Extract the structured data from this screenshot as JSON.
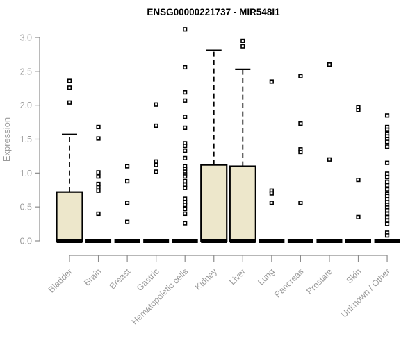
{
  "chart_data": {
    "type": "boxplot",
    "title": "ENSG00000221737 - MIR548I1",
    "ylabel": "Expression",
    "xlabel": "",
    "ylim": [
      0,
      3.2
    ],
    "yticks": [
      "0.0",
      "0.5",
      "1.0",
      "1.5",
      "2.0",
      "2.5",
      "3.0"
    ],
    "grid": false,
    "legend": "none",
    "colors": {
      "box_fill": "#EDE7CB",
      "box_border": "#000000",
      "whisker": "#000000",
      "outlier_stroke": "#000000",
      "outlier_fill": "#FFFFFF",
      "axis_line": "#8C8C8C",
      "tick_label": "#9A9A9A",
      "title": "#000000"
    },
    "categories": [
      {
        "label": "Bladder",
        "q1": 0,
        "median": 0,
        "q3": 0.72,
        "whisker_low": 0,
        "whisker_high": 1.57,
        "outliers": [
          2.36,
          2.26,
          2.04
        ]
      },
      {
        "label": "Brain",
        "q1": 0,
        "median": 0,
        "q3": 0,
        "whisker_low": 0,
        "whisker_high": 0,
        "outliers": [
          1.68,
          1.51,
          1.01,
          0.95,
          0.84,
          0.79,
          0.74,
          0.4
        ]
      },
      {
        "label": "Breast",
        "q1": 0,
        "median": 0,
        "q3": 0,
        "whisker_low": 0,
        "whisker_high": 0,
        "outliers": [
          1.1,
          0.88,
          0.56,
          0.28
        ]
      },
      {
        "label": "Gastric",
        "q1": 0,
        "median": 0,
        "q3": 0,
        "whisker_low": 0,
        "whisker_high": 0,
        "outliers": [
          2.01,
          1.7,
          1.17,
          1.12,
          1.02
        ]
      },
      {
        "label": "Hematopoietic cells",
        "q1": 0,
        "median": 0,
        "q3": 0,
        "whisker_low": 0,
        "whisker_high": 0,
        "outliers": [
          3.12,
          2.56,
          2.19,
          2.07,
          1.83,
          1.67,
          1.44,
          1.4,
          1.33,
          1.22,
          1.1,
          1.06,
          1.02,
          0.98,
          0.95,
          0.88,
          0.83,
          0.78,
          0.62,
          0.57,
          0.53,
          0.47,
          0.4,
          0.26
        ]
      },
      {
        "label": "Kidney",
        "q1": 0,
        "median": 0,
        "q3": 1.12,
        "whisker_low": 0,
        "whisker_high": 2.81,
        "outliers": []
      },
      {
        "label": "Liver",
        "q1": 0,
        "median": 0,
        "q3": 1.1,
        "whisker_low": 0,
        "whisker_high": 2.53,
        "outliers": [
          2.95,
          2.87
        ]
      },
      {
        "label": "Lung",
        "q1": 0,
        "median": 0,
        "q3": 0,
        "whisker_low": 0,
        "whisker_high": 0,
        "outliers": [
          2.35,
          0.74,
          0.7,
          0.56
        ]
      },
      {
        "label": "Pancreas",
        "q1": 0,
        "median": 0,
        "q3": 0,
        "whisker_low": 0,
        "whisker_high": 0,
        "outliers": [
          2.43,
          1.73,
          1.35,
          1.31,
          0.56
        ]
      },
      {
        "label": "Prostate",
        "q1": 0,
        "median": 0,
        "q3": 0,
        "whisker_low": 0,
        "whisker_high": 0,
        "outliers": [
          2.6,
          1.2
        ]
      },
      {
        "label": "Skin",
        "q1": 0,
        "median": 0,
        "q3": 0,
        "whisker_low": 0,
        "whisker_high": 0,
        "outliers": [
          1.97,
          1.93,
          0.9,
          0.35
        ]
      },
      {
        "label": "Unknown / Other",
        "q1": 0,
        "median": 0,
        "q3": 0,
        "whisker_low": 0,
        "whisker_high": 0,
        "outliers": [
          1.85,
          1.68,
          1.64,
          1.58,
          1.54,
          1.5,
          1.46,
          1.39,
          1.15,
          0.99,
          0.94,
          0.87,
          0.82,
          0.76,
          0.69,
          0.66,
          0.61,
          0.57,
          0.53,
          0.49,
          0.45,
          0.4,
          0.35,
          0.3,
          0.25,
          0.12,
          0.08
        ]
      }
    ]
  }
}
